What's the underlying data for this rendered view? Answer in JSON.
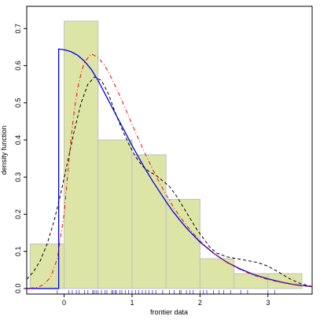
{
  "chart_data": {
    "type": "histogram",
    "xlabel": "frontier data",
    "ylabel": "density function",
    "xlim": [
      -0.55,
      3.65
    ],
    "ylim": [
      -0.015,
      0.76
    ],
    "x_ticks": [
      {
        "value": 0,
        "label": "0"
      },
      {
        "value": 1,
        "label": "1"
      },
      {
        "value": 2,
        "label": "2"
      },
      {
        "value": 3,
        "label": "3"
      }
    ],
    "y_ticks": [
      {
        "value": 0.0,
        "label": "0.0"
      },
      {
        "value": 0.1,
        "label": "0.1"
      },
      {
        "value": 0.2,
        "label": "0.2"
      },
      {
        "value": 0.3,
        "label": "0.3"
      },
      {
        "value": 0.4,
        "label": "0.4"
      },
      {
        "value": 0.5,
        "label": "0.5"
      },
      {
        "value": 0.6,
        "label": "0.6"
      },
      {
        "value": 0.7,
        "label": "0.7"
      }
    ],
    "bins": [
      {
        "x0": -0.5,
        "x1": 0.0,
        "density": 0.12
      },
      {
        "x0": 0.0,
        "x1": 0.5,
        "density": 0.72
      },
      {
        "x0": 0.5,
        "x1": 1.0,
        "density": 0.4
      },
      {
        "x0": 1.0,
        "x1": 1.5,
        "density": 0.36
      },
      {
        "x0": 1.5,
        "x1": 2.0,
        "density": 0.24
      },
      {
        "x0": 2.0,
        "x1": 2.5,
        "density": 0.08
      },
      {
        "x0": 2.5,
        "x1": 3.0,
        "density": 0.04
      },
      {
        "x0": 3.0,
        "x1": 3.5,
        "density": 0.04
      }
    ],
    "rug": [
      -0.1,
      0.07,
      0.12,
      0.18,
      0.22,
      0.3,
      0.35,
      0.42,
      0.44,
      0.47,
      0.5,
      0.55,
      0.6,
      0.63,
      0.7,
      0.72,
      0.75,
      0.77,
      0.82,
      0.85,
      0.9,
      0.95,
      1.0,
      1.05,
      1.1,
      1.15,
      1.2,
      1.25,
      1.3,
      1.35,
      1.45,
      1.55,
      1.62,
      1.7,
      1.72,
      1.8,
      1.85,
      1.9,
      2.0,
      2.05,
      2.1,
      2.2,
      2.28,
      2.35,
      2.45,
      2.6,
      2.7,
      3.0,
      3.1
    ],
    "curves": [
      {
        "style": "solid",
        "color": "#0000ee",
        "points": [
          [
            -0.55,
            0.0
          ],
          [
            -0.08,
            0.0
          ],
          [
            -0.08,
            0.645
          ],
          [
            0.0,
            0.643
          ],
          [
            0.1,
            0.638
          ],
          [
            0.2,
            0.628
          ],
          [
            0.3,
            0.612
          ],
          [
            0.4,
            0.59
          ],
          [
            0.5,
            0.56
          ],
          [
            0.6,
            0.525
          ],
          [
            0.7,
            0.49
          ],
          [
            0.8,
            0.455
          ],
          [
            0.9,
            0.42
          ],
          [
            1.0,
            0.385
          ],
          [
            1.1,
            0.352
          ],
          [
            1.2,
            0.32
          ],
          [
            1.3,
            0.29
          ],
          [
            1.4,
            0.262
          ],
          [
            1.5,
            0.234
          ],
          [
            1.6,
            0.208
          ],
          [
            1.7,
            0.185
          ],
          [
            1.8,
            0.163
          ],
          [
            1.9,
            0.144
          ],
          [
            2.0,
            0.125
          ],
          [
            2.2,
            0.095
          ],
          [
            2.4,
            0.07
          ],
          [
            2.6,
            0.052
          ],
          [
            2.8,
            0.037
          ],
          [
            3.0,
            0.026
          ],
          [
            3.2,
            0.017
          ],
          [
            3.4,
            0.01
          ],
          [
            3.65,
            0.005
          ]
        ]
      },
      {
        "style": "dashed",
        "color": "#000000",
        "points": [
          [
            -0.55,
            0.025
          ],
          [
            -0.45,
            0.045
          ],
          [
            -0.35,
            0.075
          ],
          [
            -0.25,
            0.12
          ],
          [
            -0.15,
            0.18
          ],
          [
            -0.05,
            0.255
          ],
          [
            0.05,
            0.34
          ],
          [
            0.15,
            0.425
          ],
          [
            0.25,
            0.5
          ],
          [
            0.35,
            0.55
          ],
          [
            0.45,
            0.57
          ],
          [
            0.55,
            0.56
          ],
          [
            0.65,
            0.525
          ],
          [
            0.75,
            0.475
          ],
          [
            0.85,
            0.43
          ],
          [
            0.95,
            0.39
          ],
          [
            1.05,
            0.355
          ],
          [
            1.15,
            0.33
          ],
          [
            1.25,
            0.315
          ],
          [
            1.35,
            0.305
          ],
          [
            1.45,
            0.29
          ],
          [
            1.55,
            0.275
          ],
          [
            1.65,
            0.25
          ],
          [
            1.75,
            0.22
          ],
          [
            1.85,
            0.19
          ],
          [
            1.95,
            0.16
          ],
          [
            2.05,
            0.135
          ],
          [
            2.15,
            0.11
          ],
          [
            2.25,
            0.095
          ],
          [
            2.4,
            0.085
          ],
          [
            2.55,
            0.08
          ],
          [
            2.7,
            0.075
          ],
          [
            2.85,
            0.07
          ],
          [
            3.0,
            0.06
          ],
          [
            3.15,
            0.045
          ],
          [
            3.3,
            0.028
          ],
          [
            3.45,
            0.015
          ],
          [
            3.65,
            0.005
          ]
        ]
      },
      {
        "style": "dotdash",
        "color": "#ff0000",
        "points": [
          [
            -0.55,
            0.0
          ],
          [
            -0.4,
            0.003
          ],
          [
            -0.3,
            0.01
          ],
          [
            -0.2,
            0.03
          ],
          [
            -0.1,
            0.08
          ],
          [
            0.0,
            0.2
          ],
          [
            0.05,
            0.3
          ],
          [
            0.1,
            0.4
          ],
          [
            0.15,
            0.48
          ],
          [
            0.2,
            0.54
          ],
          [
            0.25,
            0.58
          ],
          [
            0.3,
            0.61
          ],
          [
            0.4,
            0.632
          ],
          [
            0.5,
            0.622
          ],
          [
            0.6,
            0.6
          ],
          [
            0.7,
            0.566
          ],
          [
            0.8,
            0.527
          ],
          [
            0.9,
            0.485
          ],
          [
            1.0,
            0.442
          ],
          [
            1.1,
            0.4
          ],
          [
            1.2,
            0.36
          ],
          [
            1.3,
            0.322
          ],
          [
            1.4,
            0.286
          ],
          [
            1.5,
            0.253
          ],
          [
            1.6,
            0.222
          ],
          [
            1.7,
            0.195
          ],
          [
            1.8,
            0.17
          ],
          [
            2.0,
            0.128
          ],
          [
            2.2,
            0.095
          ],
          [
            2.4,
            0.07
          ],
          [
            2.6,
            0.05
          ],
          [
            2.8,
            0.035
          ],
          [
            3.0,
            0.024
          ],
          [
            3.2,
            0.016
          ],
          [
            3.4,
            0.01
          ],
          [
            3.65,
            0.005
          ]
        ]
      }
    ]
  }
}
